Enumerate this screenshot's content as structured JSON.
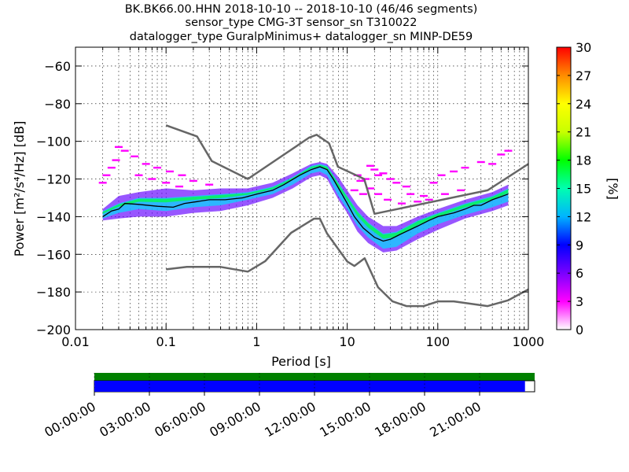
{
  "chart_data": {
    "type": "heatmap",
    "title_lines": [
      "BK.BK66.00.HHN   2018-10-10 -- 2018-10-10  (46/46 segments)",
      "sensor_type CMG-3T sensor_sn T310022",
      "datalogger_type GuralpMinimus+ datalogger_sn MINP-DE59"
    ],
    "xlabel": "Period [s]",
    "ylabel": "Power [m²/s⁴/Hz] [dB]",
    "x_scale": "log",
    "xlim": [
      0.01,
      1000
    ],
    "ylim": [
      -200,
      -50
    ],
    "x_ticks": [
      0.01,
      0.1,
      1,
      10,
      100,
      1000
    ],
    "x_tick_labels": [
      "0.01",
      "0.1",
      "1",
      "10",
      "100",
      "1000"
    ],
    "y_ticks": [
      -60,
      -80,
      -100,
      -120,
      -140,
      -160,
      -180,
      -200
    ],
    "y_tick_labels": [
      "−60",
      "−80",
      "−100",
      "−120",
      "−140",
      "−160",
      "−180",
      "−200"
    ],
    "grid": true,
    "colorbar": {
      "label": "[%]",
      "range": [
        0,
        30
      ],
      "ticks": [
        0,
        3,
        6,
        9,
        12,
        15,
        18,
        21,
        24,
        27,
        30
      ],
      "tick_labels": [
        "0",
        "3",
        "6",
        "9",
        "12",
        "15",
        "18",
        "21",
        "24",
        "27",
        "30"
      ],
      "colors": [
        "#ffffff",
        "#ff00ff",
        "#7a00ff",
        "#0000ff",
        "#00b4ff",
        "#00ffb0",
        "#00ff00",
        "#c8ff00",
        "#ffff00",
        "#ff8c00",
        "#ff0000"
      ]
    },
    "noise_models": [
      {
        "name": "NHNM",
        "color": "#666666",
        "points": [
          [
            0.1,
            -91.5
          ],
          [
            0.22,
            -97.4
          ],
          [
            0.32,
            -110.5
          ],
          [
            0.8,
            -120
          ],
          [
            3.8,
            -98
          ],
          [
            4.6,
            -96.5
          ],
          [
            6.3,
            -101
          ],
          [
            7.9,
            -113.5
          ],
          [
            15.4,
            -120
          ],
          [
            20,
            -138.5
          ],
          [
            354.8,
            -126
          ],
          [
            1000,
            -112
          ]
        ]
      },
      {
        "name": "NLNM",
        "color": "#666666",
        "points": [
          [
            0.1,
            -168
          ],
          [
            0.17,
            -166.7
          ],
          [
            0.4,
            -166.7
          ],
          [
            0.8,
            -169.2
          ],
          [
            1.24,
            -163.7
          ],
          [
            2.4,
            -148.6
          ],
          [
            4.3,
            -141.1
          ],
          [
            5,
            -141.1
          ],
          [
            6,
            -149
          ],
          [
            10,
            -163.8
          ],
          [
            12,
            -166.2
          ],
          [
            15.6,
            -162.1
          ],
          [
            21.9,
            -177.5
          ],
          [
            31.6,
            -185
          ],
          [
            45,
            -187.5
          ],
          [
            70,
            -187.5
          ],
          [
            101,
            -185
          ],
          [
            150,
            -185
          ],
          [
            354.8,
            -187.5
          ],
          [
            600,
            -184.4
          ],
          [
            1000,
            -178.6
          ]
        ]
      }
    ],
    "mode_curve": {
      "color": "#000000",
      "points": [
        [
          0.02,
          -140
        ],
        [
          0.025,
          -137
        ],
        [
          0.03,
          -136
        ],
        [
          0.035,
          -133
        ],
        [
          0.05,
          -133.5
        ],
        [
          0.08,
          -134.5
        ],
        [
          0.12,
          -135
        ],
        [
          0.16,
          -133
        ],
        [
          0.22,
          -132
        ],
        [
          0.3,
          -131
        ],
        [
          0.45,
          -131
        ],
        [
          0.7,
          -130
        ],
        [
          1,
          -128
        ],
        [
          1.5,
          -126
        ],
        [
          2,
          -123
        ],
        [
          3,
          -118
        ],
        [
          4,
          -115
        ],
        [
          5,
          -113.5
        ],
        [
          6,
          -115
        ],
        [
          7,
          -120
        ],
        [
          8.5,
          -127
        ],
        [
          10,
          -133
        ],
        [
          12,
          -140
        ],
        [
          15,
          -146
        ],
        [
          20,
          -151
        ],
        [
          25,
          -153
        ],
        [
          30,
          -152
        ],
        [
          40,
          -149
        ],
        [
          60,
          -145
        ],
        [
          80,
          -142
        ],
        [
          100,
          -140
        ],
        [
          150,
          -138
        ],
        [
          200,
          -136
        ],
        [
          250,
          -134
        ],
        [
          300,
          -134
        ],
        [
          400,
          -131
        ],
        [
          600,
          -128
        ]
      ]
    },
    "pdf_band": {
      "core": [
        [
          0.02,
          -141,
          -137
        ],
        [
          0.03,
          -138,
          -133
        ],
        [
          0.05,
          -136,
          -130
        ],
        [
          0.1,
          -137,
          -130
        ],
        [
          0.2,
          -135,
          -129
        ],
        [
          0.4,
          -134,
          -128
        ],
        [
          0.8,
          -131,
          -127
        ],
        [
          1.5,
          -128,
          -124
        ],
        [
          2.5,
          -123,
          -119
        ],
        [
          4,
          -117,
          -113
        ],
        [
          5,
          -116,
          -112
        ],
        [
          6,
          -118,
          -113
        ],
        [
          8,
          -129,
          -122
        ],
        [
          10,
          -136,
          -129
        ],
        [
          13,
          -145,
          -137
        ],
        [
          17,
          -151,
          -143
        ],
        [
          25,
          -157,
          -149
        ],
        [
          35,
          -156,
          -148
        ],
        [
          60,
          -149,
          -142
        ],
        [
          100,
          -144,
          -138
        ],
        [
          200,
          -139,
          -133
        ],
        [
          400,
          -135,
          -129
        ],
        [
          600,
          -132,
          -125
        ]
      ],
      "wide": [
        [
          0.02,
          -142,
          -136
        ],
        [
          0.03,
          -141,
          -129
        ],
        [
          0.05,
          -140,
          -127
        ],
        [
          0.1,
          -140,
          -125
        ],
        [
          0.2,
          -138,
          -126
        ],
        [
          0.4,
          -137,
          -125
        ],
        [
          0.8,
          -134,
          -125
        ],
        [
          1.5,
          -130,
          -122
        ],
        [
          2.5,
          -125,
          -117
        ],
        [
          4,
          -119,
          -112
        ],
        [
          5,
          -118,
          -111
        ],
        [
          6,
          -120,
          -112
        ],
        [
          8,
          -131,
          -119
        ],
        [
          10,
          -138,
          -126
        ],
        [
          13,
          -148,
          -134
        ],
        [
          17,
          -154,
          -140
        ],
        [
          25,
          -159,
          -145
        ],
        [
          35,
          -158,
          -145
        ],
        [
          60,
          -152,
          -140
        ],
        [
          100,
          -147,
          -136
        ],
        [
          200,
          -141,
          -131
        ],
        [
          400,
          -137,
          -127
        ],
        [
          600,
          -134,
          -123
        ]
      ]
    },
    "scatter_outliers": [
      [
        0.03,
        -103
      ],
      [
        0.035,
        -105
      ],
      [
        0.045,
        -108
      ],
      [
        0.06,
        -112
      ],
      [
        0.08,
        -114
      ],
      [
        0.11,
        -116
      ],
      [
        0.15,
        -118
      ],
      [
        0.028,
        -110
      ],
      [
        0.025,
        -114
      ],
      [
        0.022,
        -118
      ],
      [
        0.02,
        -122
      ],
      [
        0.05,
        -118
      ],
      [
        0.07,
        -120
      ],
      [
        0.1,
        -122
      ],
      [
        0.14,
        -124
      ],
      [
        0.2,
        -121
      ],
      [
        0.3,
        -123
      ],
      [
        13,
        -118
      ],
      [
        14,
        -121
      ],
      [
        16,
        -120
      ],
      [
        18,
        -113
      ],
      [
        20,
        -115
      ],
      [
        22,
        -118
      ],
      [
        25,
        -117
      ],
      [
        30,
        -120
      ],
      [
        35,
        -122
      ],
      [
        45,
        -124
      ],
      [
        50,
        -128
      ],
      [
        70,
        -129
      ],
      [
        90,
        -122
      ],
      [
        110,
        -118
      ],
      [
        150,
        -116
      ],
      [
        200,
        -114
      ],
      [
        300,
        -111
      ],
      [
        400,
        -112
      ],
      [
        500,
        -107
      ],
      [
        600,
        -105
      ],
      [
        12,
        -126
      ],
      [
        15,
        -128
      ],
      [
        18,
        -125
      ],
      [
        22,
        -128
      ],
      [
        28,
        -131
      ],
      [
        40,
        -133
      ],
      [
        60,
        -132
      ],
      [
        80,
        -131
      ],
      [
        120,
        -128
      ],
      [
        180,
        -126
      ]
    ]
  },
  "timeline": {
    "tick_labels": [
      "00:00:00",
      "03:00:00",
      "06:00:00",
      "09:00:00",
      "12:00:00",
      "15:00:00",
      "18:00:00",
      "21:00:00"
    ],
    "availability_color": "#008000",
    "coverage_color": "#0000ff",
    "coverage_fraction": 0.978
  }
}
